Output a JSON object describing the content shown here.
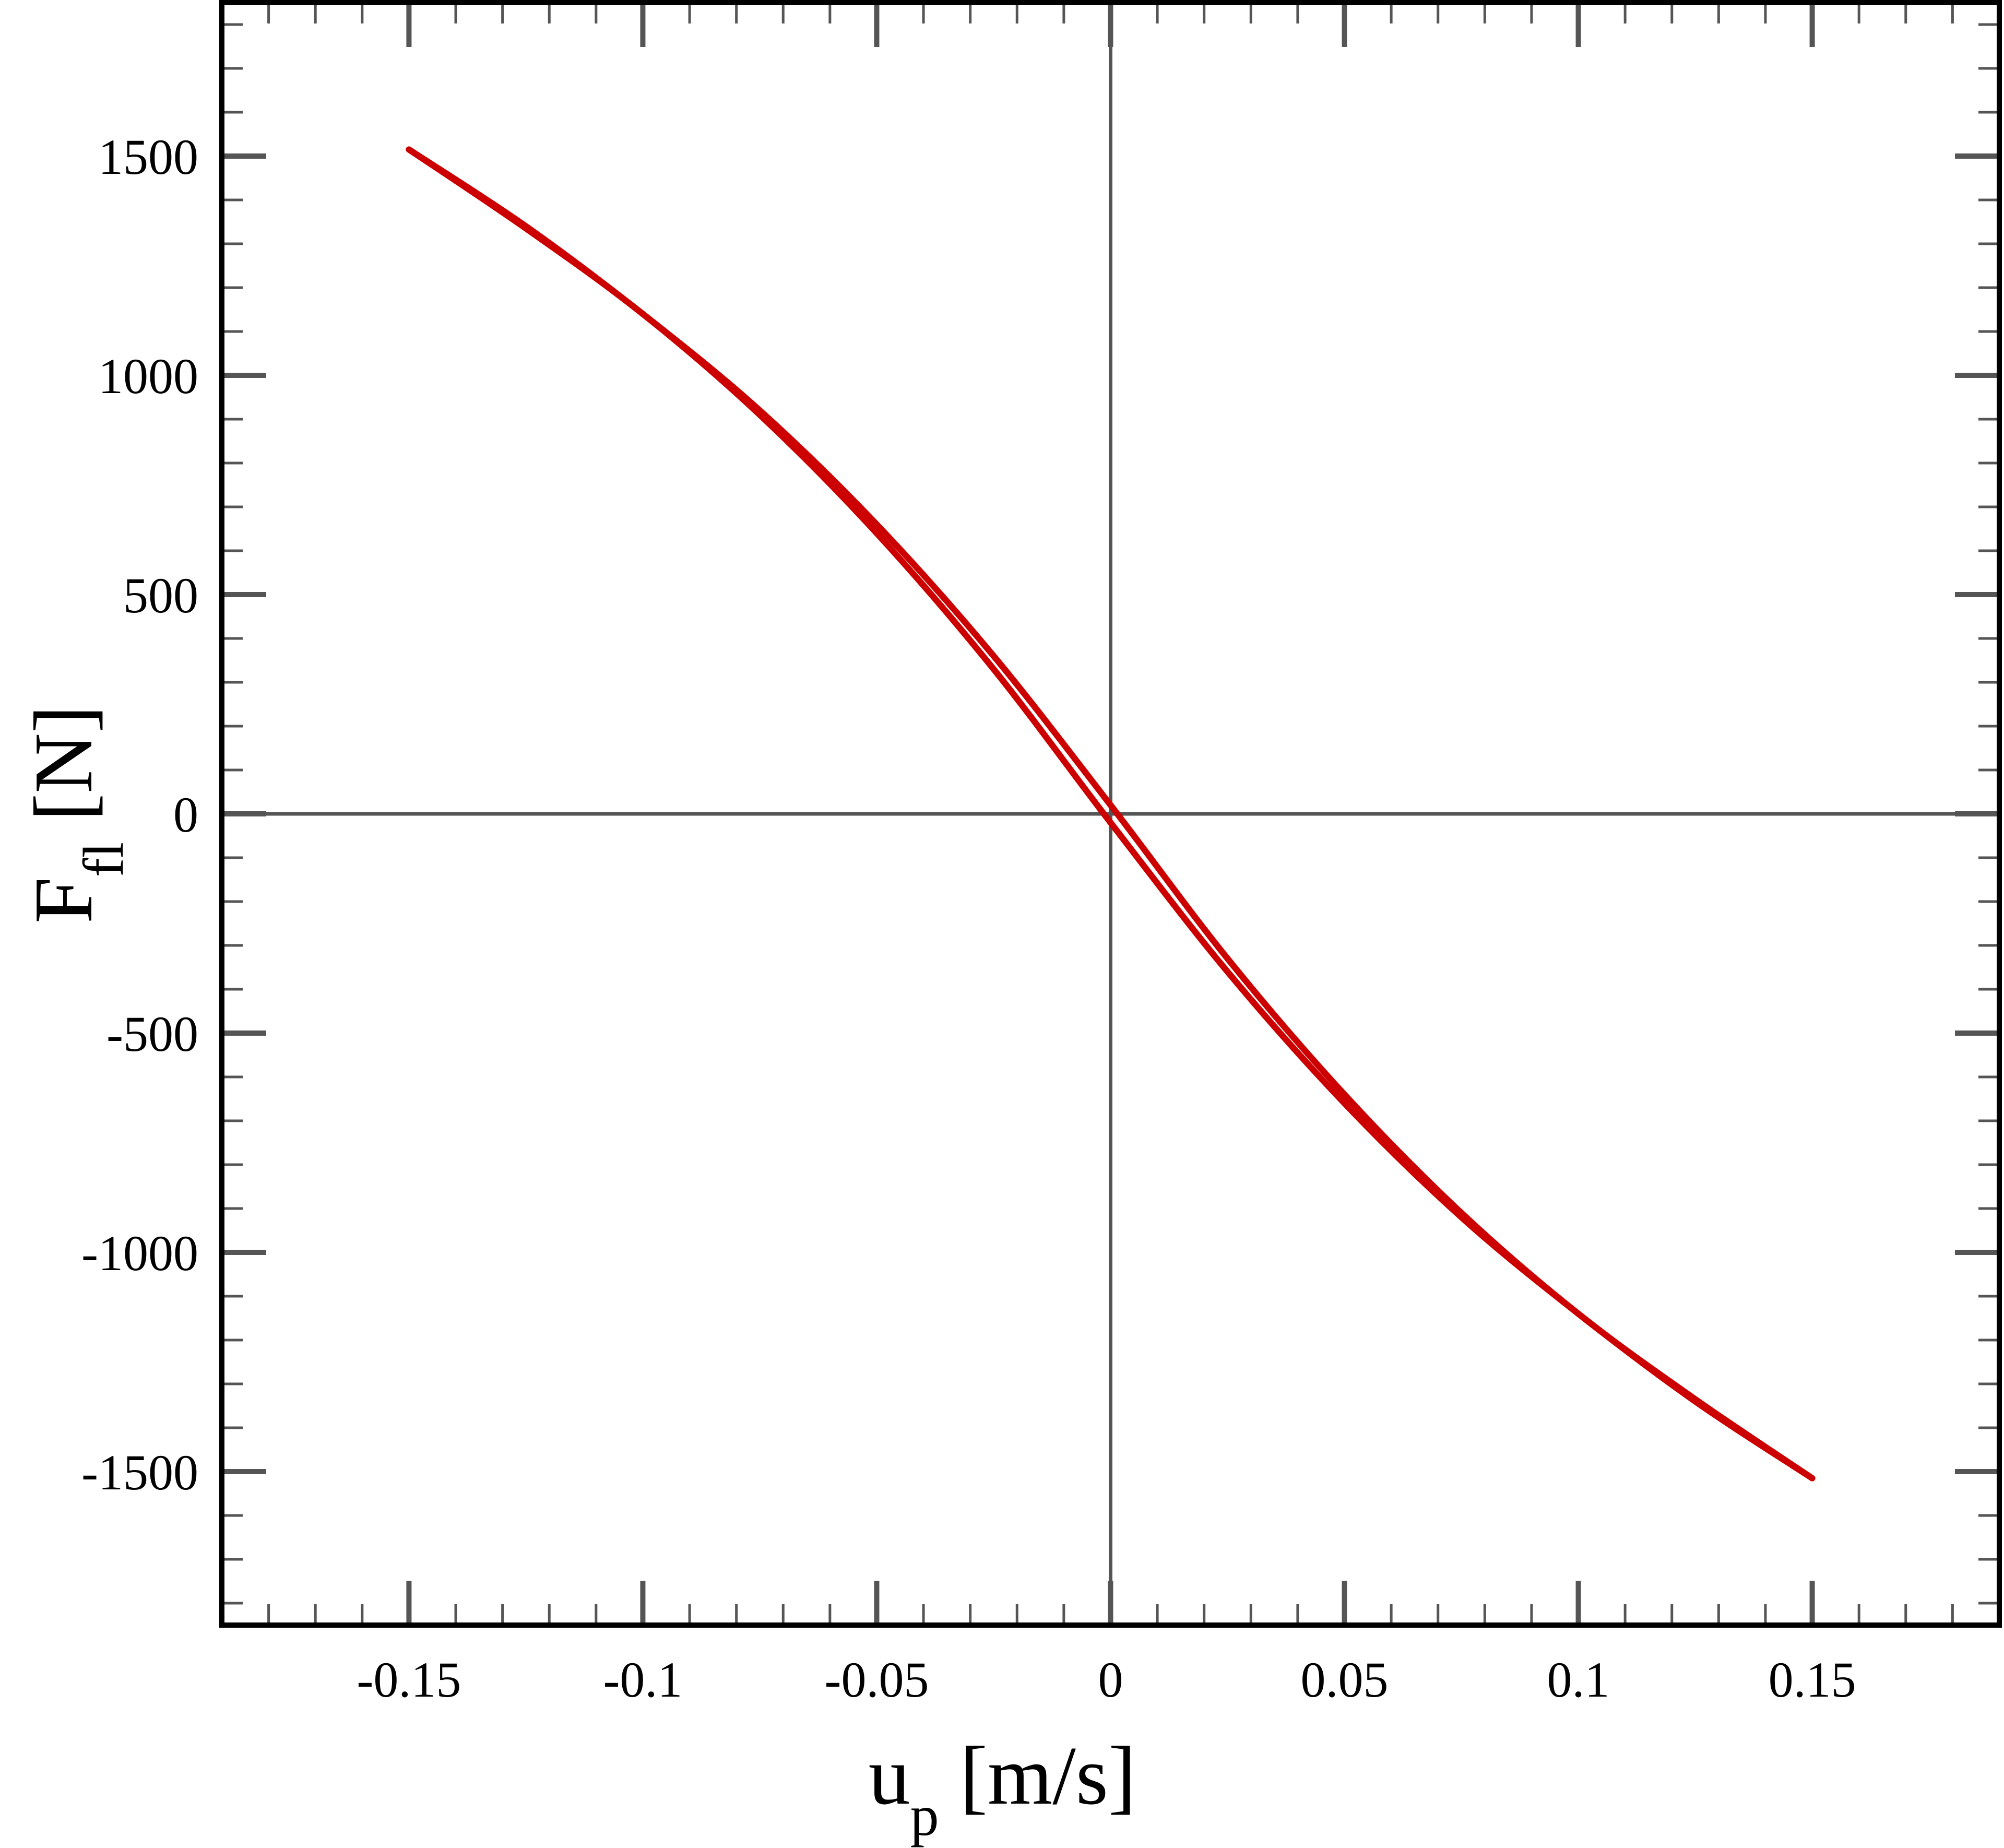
{
  "chart_data": {
    "type": "line",
    "title": "",
    "xlabel": {
      "main": "u",
      "sub": "p",
      "unit": " [m/s]"
    },
    "ylabel": {
      "main": "F",
      "sub": "fl",
      "unit": " [N]"
    },
    "xlim": [
      -0.19,
      0.19
    ],
    "ylim": [
      -1850,
      1850
    ],
    "x_ticks": [
      -0.15,
      -0.1,
      -0.05,
      0,
      0.05,
      0.1,
      0.15
    ],
    "x_tick_labels": [
      "-0.15",
      "-0.1",
      "-0.05",
      "0",
      "0.05",
      "0.1",
      "0.15"
    ],
    "y_ticks": [
      -1500,
      -1000,
      -500,
      0,
      500,
      1000,
      1500
    ],
    "y_tick_labels": [
      "-1500",
      "-1000",
      "-500",
      "0",
      "500",
      "1000",
      "1500"
    ],
    "grid": false,
    "zero_lines": true,
    "legend": "none",
    "series": [
      {
        "color": "#cc0000",
        "x": [
          -0.15,
          -0.125,
          -0.1,
          -0.075,
          -0.05,
          -0.025,
          0.0,
          0.025,
          0.05,
          0.075,
          0.1,
          0.125,
          0.15
        ],
        "y": [
          1515,
          1340,
          1140,
          920,
          660,
          360,
          20,
          -330,
          -640,
          -910,
          -1140,
          -1335,
          -1515
        ]
      },
      {
        "color": "#cc0000",
        "x": [
          -0.15,
          -0.125,
          -0.1,
          -0.075,
          -0.05,
          -0.025,
          0.0,
          0.025,
          0.05,
          0.075,
          0.1,
          0.125,
          0.15
        ],
        "y": [
          1515,
          1335,
          1140,
          910,
          640,
          330,
          -20,
          -360,
          -660,
          -920,
          -1140,
          -1340,
          -1515
        ]
      }
    ]
  }
}
